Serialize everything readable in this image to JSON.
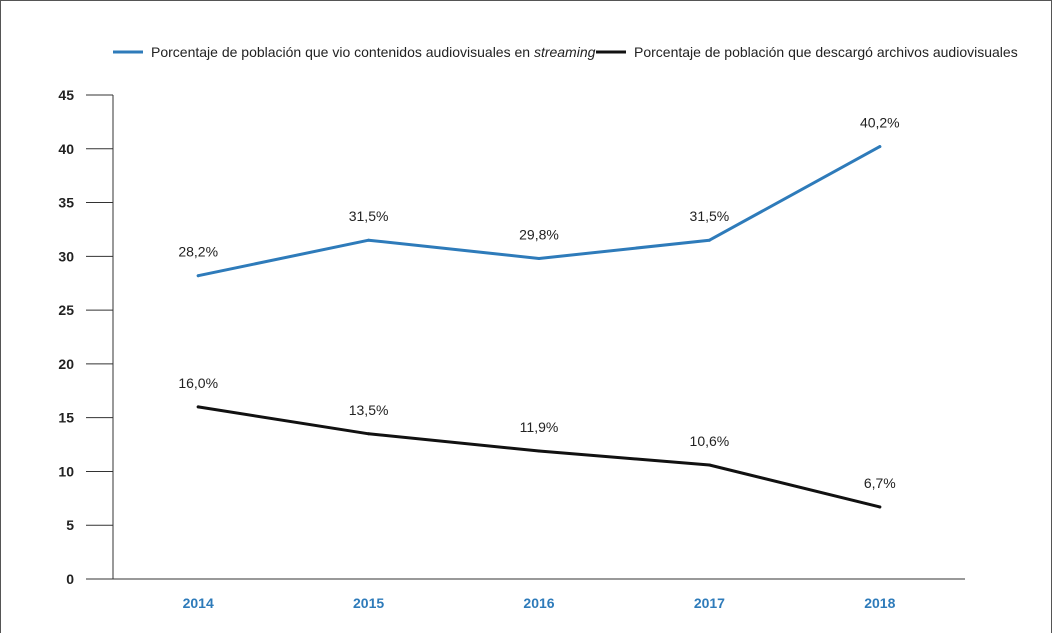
{
  "chart_data": {
    "type": "line",
    "categories": [
      "2014",
      "2015",
      "2016",
      "2017",
      "2018"
    ],
    "series": [
      {
        "name": "Porcentaje de población que vio contenidos audiovisuales en streaming",
        "name_prefix": "Porcentaje de población que vio contenidos audiovisuales en ",
        "name_emphasis": "streaming",
        "color": "#2e7bba",
        "values": [
          28.2,
          31.5,
          29.8,
          31.5,
          40.2
        ],
        "labels": [
          "28,2%",
          "31,5%",
          "29,8%",
          "31,5%",
          "40,2%"
        ]
      },
      {
        "name": "Porcentaje de población que descargó archivos audiovisuales",
        "color": "#111111",
        "values": [
          16.0,
          13.5,
          11.9,
          10.6,
          6.7
        ],
        "labels": [
          "16,0%",
          "13,5%",
          "11,9%",
          "10,6%",
          "6,7%"
        ]
      }
    ],
    "yticks": [
      "0",
      "5",
      "10",
      "15",
      "20",
      "25",
      "30",
      "35",
      "40",
      "45"
    ],
    "ylim": [
      0,
      45
    ],
    "grid": false,
    "legend_position": "top",
    "xtick_color": "#2e7bba",
    "title": "",
    "xlabel": "",
    "ylabel": ""
  }
}
